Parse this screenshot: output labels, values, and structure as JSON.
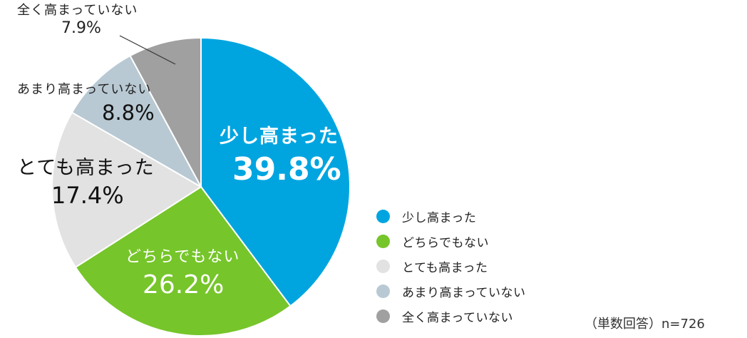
{
  "chart_data": {
    "type": "pie",
    "categories": [
      "少し高まった",
      "どちらでもない",
      "とても高まった",
      "あまり高まっていない",
      "全く高まっていない"
    ],
    "values": [
      39.8,
      26.2,
      17.4,
      8.8,
      7.9
    ],
    "value_labels": [
      "39.8%",
      "26.2%",
      "17.4%",
      "8.8%",
      "7.9%"
    ],
    "slice_labels": [
      "少し高まった",
      "どちらでもない",
      "とても高まった",
      "あまり高まっていない",
      "全く高まっていない"
    ],
    "colors": [
      "#00a5e0",
      "#76c52a",
      "#e2e2e2",
      "#b8c9d3",
      "#a0a0a0"
    ],
    "legend": {
      "position": "right",
      "entries": [
        "少し高まった",
        "どちらでもない",
        "とても高まった",
        "あまり高まっていない",
        "全く高まっていない"
      ]
    },
    "note": "（単数回答）n=726"
  }
}
